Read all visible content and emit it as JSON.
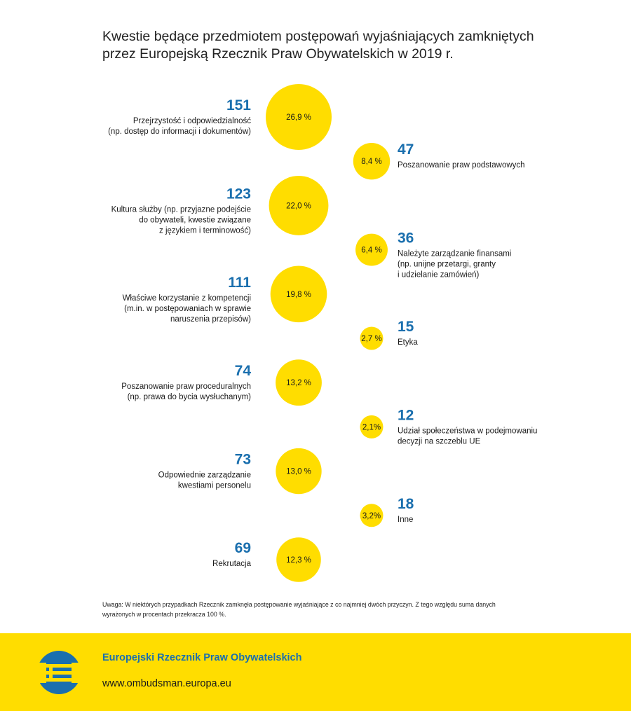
{
  "title": {
    "line1": "Kwestie będące przedmiotem postępowań wyjaśniających zamkniętych",
    "line2": "przez Europejską Rzecznik Praw Obywatelskich w 2019 r."
  },
  "chart_data": {
    "type": "bubble",
    "title": "Kwestie będące przedmiotem postępowań wyjaśniających zamkniętych przez Europejską Rzecznik Praw Obywatelskich w 2019 r.",
    "colors": {
      "bubble": "#ffdd00",
      "count": "#1a6fae"
    },
    "items": [
      {
        "count": "151",
        "value": 151,
        "percent": 26.9,
        "percent_label": "26,9 %",
        "side": "left",
        "label": [
          "Przejrzystość i odpowiedzialność",
          "(np. dostęp do informacji i dokumentów)"
        ]
      },
      {
        "count": "47",
        "value": 47,
        "percent": 8.4,
        "percent_label": "8,4 %",
        "side": "right",
        "label": [
          "Poszanowanie praw podstawowych"
        ]
      },
      {
        "count": "123",
        "value": 123,
        "percent": 22.0,
        "percent_label": "22,0 %",
        "side": "left",
        "label": [
          "Kultura służby (np. przyjazne podejście",
          "do obywateli, kwestie związane",
          "z językiem i terminowość)"
        ]
      },
      {
        "count": "36",
        "value": 36,
        "percent": 6.4,
        "percent_label": "6,4 %",
        "side": "right",
        "label": [
          "Należyte zarządzanie finansami",
          "(np. unijne przetargi, granty",
          "i udzielanie zamówień)"
        ]
      },
      {
        "count": "111",
        "value": 111,
        "percent": 19.8,
        "percent_label": "19,8 %",
        "side": "left",
        "label": [
          "Właściwe korzystanie z kompetencji",
          "(m.in. w postępowaniach w sprawie",
          "naruszenia przepisów)"
        ]
      },
      {
        "count": "15",
        "value": 15,
        "percent": 2.7,
        "percent_label": "2,7 %",
        "side": "right",
        "label": [
          "Etyka"
        ]
      },
      {
        "count": "74",
        "value": 74,
        "percent": 13.2,
        "percent_label": "13,2 %",
        "side": "left",
        "label": [
          "Poszanowanie praw proceduralnych",
          "(np. prawa do bycia wysłuchanym)"
        ]
      },
      {
        "count": "12",
        "value": 12,
        "percent": 2.1,
        "percent_label": "2,1%",
        "side": "right",
        "label": [
          "Udział społeczeństwa w podejmowaniu",
          "decyzji na szczeblu UE"
        ]
      },
      {
        "count": "73",
        "value": 73,
        "percent": 13.0,
        "percent_label": "13,0 %",
        "side": "left",
        "label": [
          "Odpowiednie zarządzanie",
          "kwestiami personelu"
        ]
      },
      {
        "count": "18",
        "value": 18,
        "percent": 3.2,
        "percent_label": "3,2%",
        "side": "right",
        "label": [
          "Inne"
        ]
      },
      {
        "count": "69",
        "value": 69,
        "percent": 12.3,
        "percent_label": "12,3 %",
        "side": "left",
        "label": [
          "Rekrutacja"
        ]
      }
    ]
  },
  "note": {
    "line1": "Uwaga: W niektórych przypadkach Rzecznik zamknęła postępowanie wyjaśniające z co najmniej dwóch przyczyn. Z tego względu suma danych",
    "line2": "wyrażonych w procentach przekracza 100 %."
  },
  "footer": {
    "org": "Europejski Rzecznik Praw Obywatelskich",
    "url": "www.ombudsman.europa.eu",
    "logo_icon": "ombudsman-logo-icon"
  }
}
